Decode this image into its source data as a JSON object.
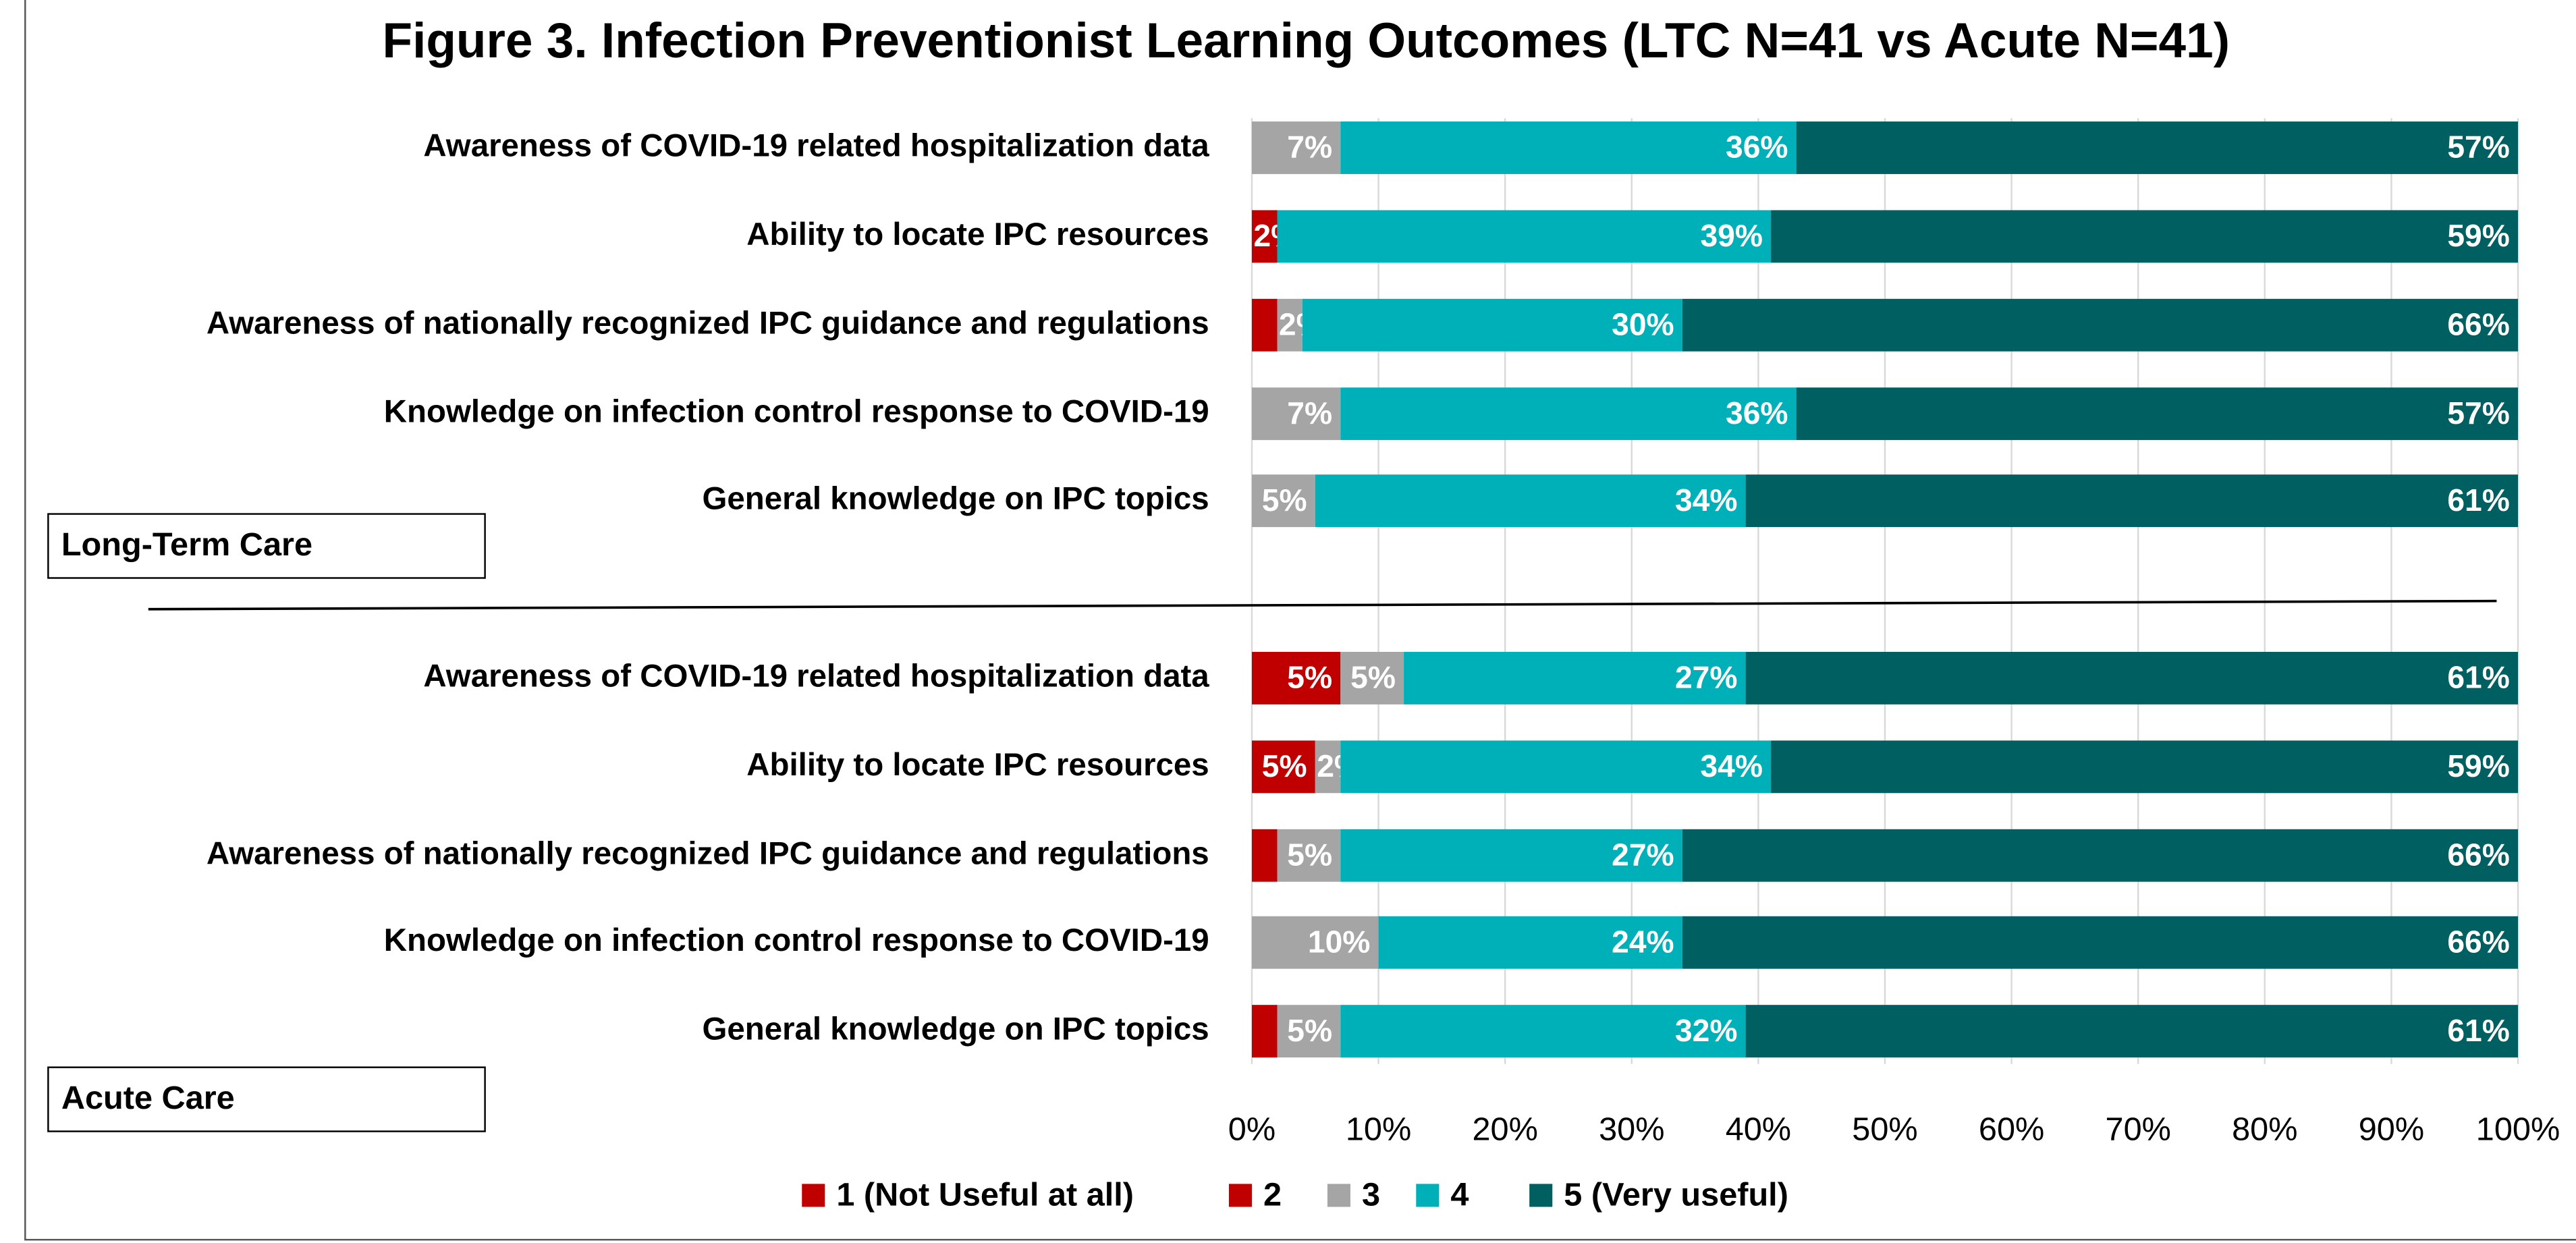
{
  "chart_data": {
    "type": "stacked-bar-horizontal",
    "title": "Figure 3. Infection Preventionist Learning Outcomes (LTC N=41 vs Acute N=41)",
    "series": [
      {
        "name": "1 (Not Useful at all)",
        "color": "#c00000"
      },
      {
        "name": "2",
        "color": "#c00000"
      },
      {
        "name": "3",
        "color": "#a5a5a5"
      },
      {
        "name": "4",
        "color": "#00b0b9"
      },
      {
        "name": "5 (Very useful)",
        "color": "#005f60"
      }
    ],
    "panels": [
      {
        "label": "Long-Term Care",
        "categories": [
          "Awareness of COVID-19 related hospitalization data",
          "Ability to locate IPC resources",
          "Awareness of nationally recognized IPC guidance and regulations",
          "Knowledge on infection control response to COVID-19",
          "General knowledge on IPC topics"
        ],
        "series": [
          {
            "values": [
              0,
              0,
              2,
              0,
              0
            ],
            "value_labels": [
              null,
              null,
              null,
              null,
              null
            ]
          },
          {
            "values": [
              0,
              2,
              0,
              0,
              0
            ],
            "value_labels": [
              null,
              "2%",
              null,
              null,
              null
            ]
          },
          {
            "values": [
              7,
              0,
              2,
              7,
              5
            ],
            "value_labels": [
              "7%",
              null,
              "2%",
              "7%",
              "5%"
            ]
          },
          {
            "values": [
              36,
              39,
              30,
              36,
              34
            ],
            "value_labels": [
              "36%",
              "39%",
              "30%",
              "36%",
              "34%"
            ]
          },
          {
            "values": [
              57,
              59,
              66,
              57,
              61
            ],
            "value_labels": [
              "57%",
              "59%",
              "66%",
              "57%",
              "61%"
            ]
          }
        ]
      },
      {
        "label": "Acute Care",
        "categories": [
          "Awareness of COVID-19 related hospitalization data",
          "Ability to locate IPC resources",
          "Awareness of nationally recognized IPC guidance and regulations",
          "Knowledge on infection control response to COVID-19",
          "General knowledge on IPC topics"
        ],
        "series": [
          {
            "values": [
              2,
              0,
              2,
              0,
              2
            ],
            "value_labels": [
              null,
              null,
              null,
              null,
              null
            ]
          },
          {
            "values": [
              5,
              5,
              0,
              0,
              0
            ],
            "value_labels": [
              "5%",
              "5%",
              null,
              null,
              null
            ]
          },
          {
            "values": [
              5,
              2,
              5,
              10,
              5
            ],
            "value_labels": [
              "5%",
              "2%",
              "5%",
              "10%",
              "5%"
            ]
          },
          {
            "values": [
              27,
              34,
              27,
              24,
              32
            ],
            "value_labels": [
              "27%",
              "34%",
              "27%",
              "24%",
              "32%"
            ]
          },
          {
            "values": [
              61,
              59,
              66,
              66,
              61
            ],
            "value_labels": [
              "61%",
              "59%",
              "66%",
              "66%",
              "61%"
            ]
          }
        ]
      }
    ],
    "xlim": [
      0,
      100
    ],
    "xticks": [
      {
        "value": 0,
        "label": "0%"
      },
      {
        "value": 10,
        "label": "10%"
      },
      {
        "value": 20,
        "label": "20%"
      },
      {
        "value": 30,
        "label": "30%"
      },
      {
        "value": 40,
        "label": "40%"
      },
      {
        "value": 50,
        "label": "50%"
      },
      {
        "value": 60,
        "label": "60%"
      },
      {
        "value": 70,
        "label": "70%"
      },
      {
        "value": 80,
        "label": "80%"
      },
      {
        "value": 90,
        "label": "90%"
      },
      {
        "value": 100,
        "label": "100%"
      }
    ],
    "grid": true
  }
}
